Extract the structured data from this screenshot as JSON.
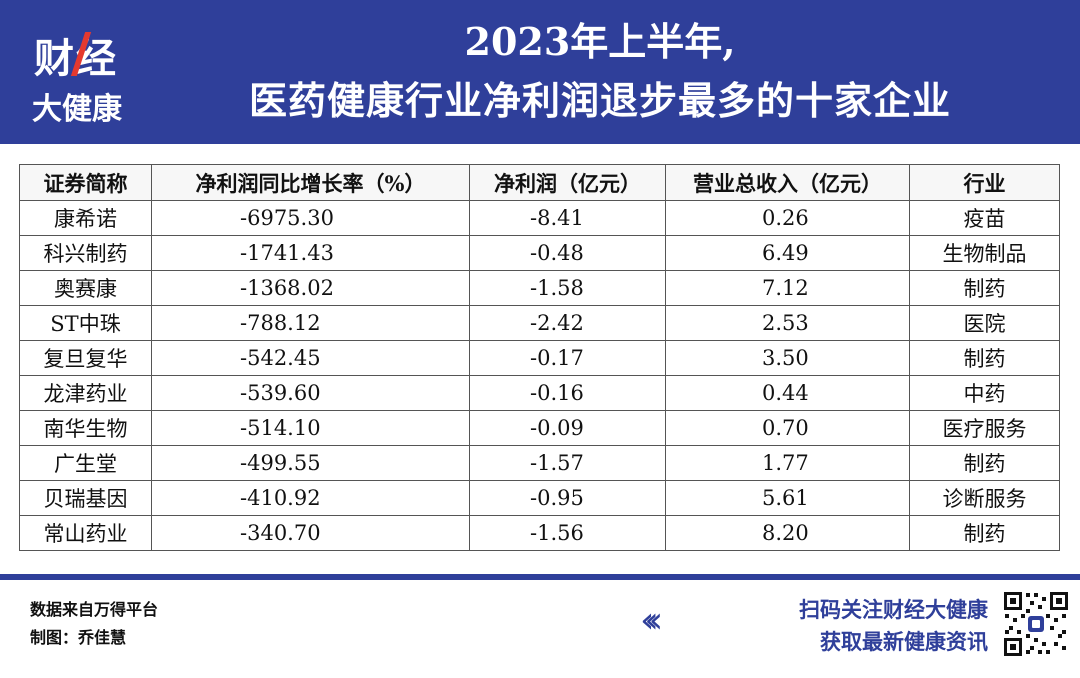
{
  "header": {
    "logo_line1": "财经",
    "logo_line2": "大健康",
    "title_line1": "2023年上半年,",
    "title_line2": "医药健康行业净利润退步最多的十家企业"
  },
  "table": {
    "columns": [
      "证券简称",
      "净利润同比增长率（%）",
      "净利润（亿元）",
      "营业总收入（亿元）",
      "行业"
    ],
    "rows": [
      {
        "name": "康希诺",
        "growth": "-6975.30",
        "profit": "-8.41",
        "revenue": "0.26",
        "industry": "疫苗"
      },
      {
        "name": "科兴制药",
        "growth": "-1741.43",
        "profit": "-0.48",
        "revenue": "6.49",
        "industry": "生物制品"
      },
      {
        "name": "奥赛康",
        "growth": "-1368.02",
        "profit": "-1.58",
        "revenue": "7.12",
        "industry": "制药"
      },
      {
        "name": "ST中珠",
        "growth": "-788.12",
        "profit": "-2.42",
        "revenue": "2.53",
        "industry": "医院"
      },
      {
        "name": "复旦复华",
        "growth": "-542.45",
        "profit": "-0.17",
        "revenue": "3.50",
        "industry": "制药"
      },
      {
        "name": "龙津药业",
        "growth": "-539.60",
        "profit": "-0.16",
        "revenue": "0.44",
        "industry": "中药"
      },
      {
        "name": "南华生物",
        "growth": "-514.10",
        "profit": "-0.09",
        "revenue": "0.70",
        "industry": "医疗服务"
      },
      {
        "name": "广生堂",
        "growth": "-499.55",
        "profit": "-1.57",
        "revenue": "1.77",
        "industry": "制药"
      },
      {
        "name": "贝瑞基因",
        "growth": "-410.92",
        "profit": "-0.95",
        "revenue": "5.61",
        "industry": "诊断服务"
      },
      {
        "name": "常山药业",
        "growth": "-340.70",
        "profit": "-1.56",
        "revenue": "8.20",
        "industry": "制药"
      }
    ]
  },
  "footer": {
    "source": "数据来自万得平台",
    "author": "制图：乔佳慧",
    "chevrons": "‹‹‹",
    "cta_line1": "扫码关注财经大健康",
    "cta_line2": "获取最新健康资讯"
  },
  "colors": {
    "brand_blue": "#2f3f9a",
    "accent_red": "#e4392f"
  },
  "icons": {
    "qr": "qr-code-icon"
  }
}
